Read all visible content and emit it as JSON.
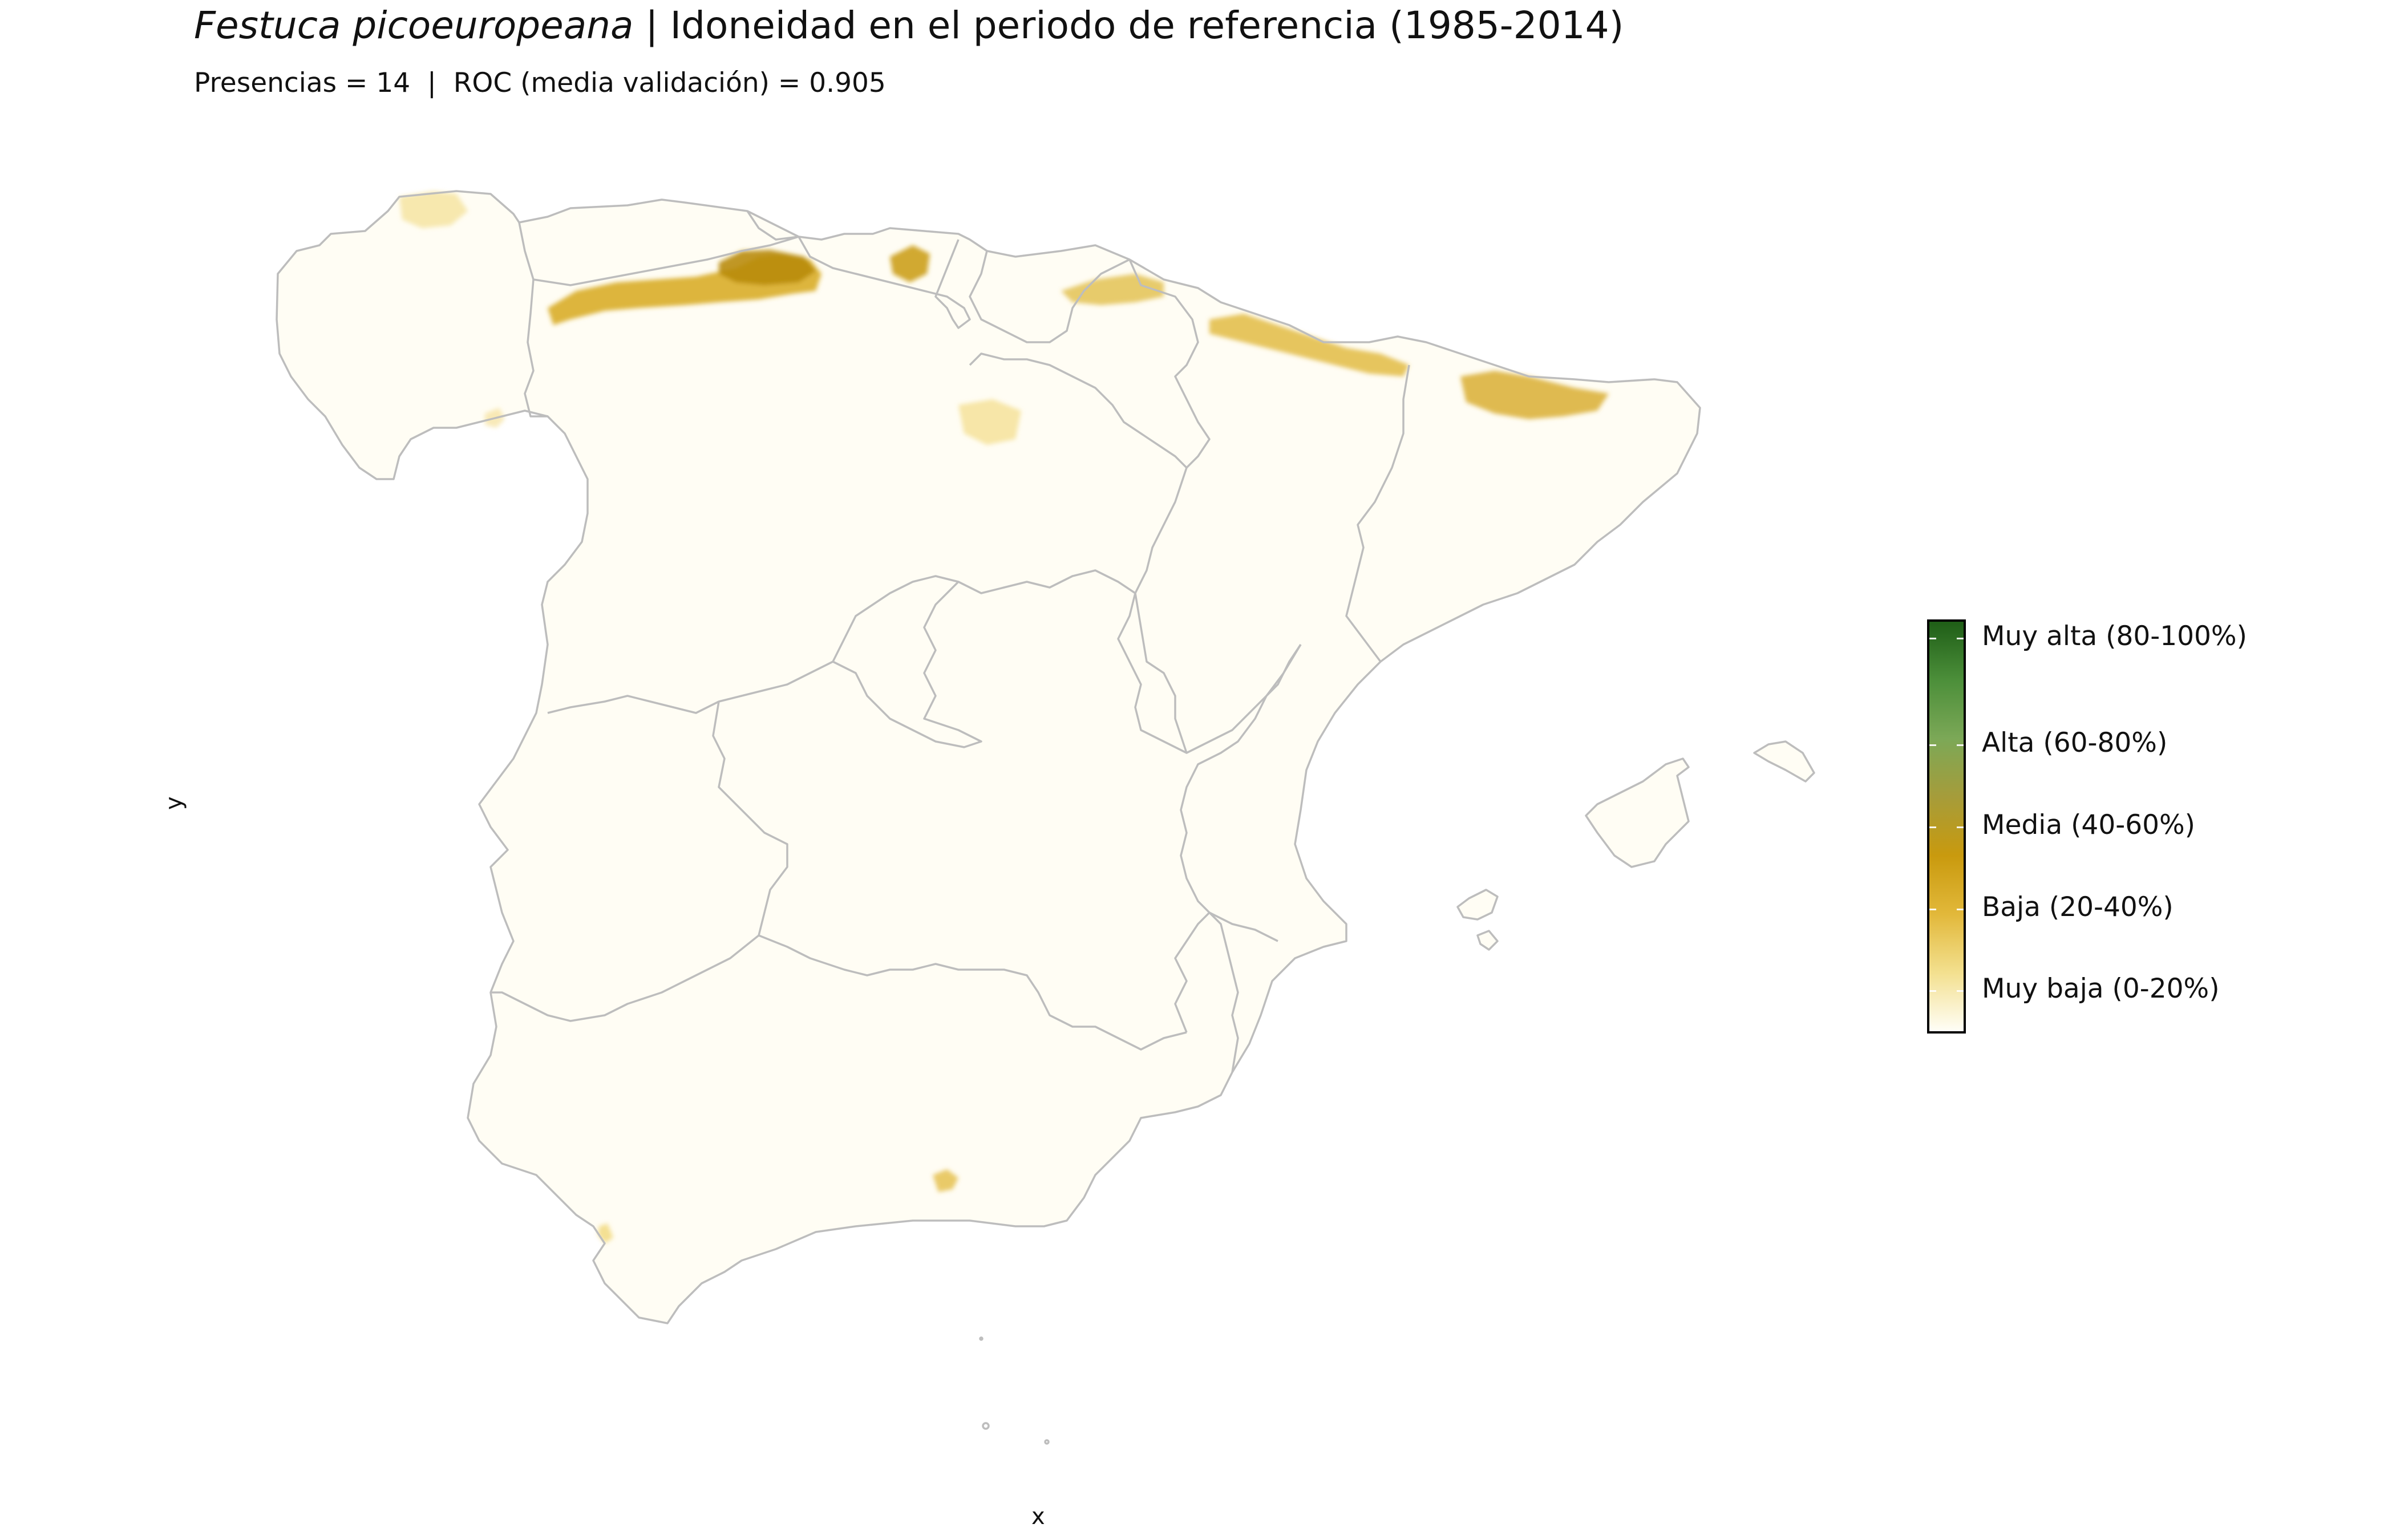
{
  "title": {
    "species": "Festuca picoeuropeana",
    "rest": " | Idoneidad en el periodo de referencia (1985-2014)"
  },
  "subtitle": "Presencias = 14  |  ROC (media validación) = 0.905",
  "axes": {
    "xlabel": "x",
    "ylabel": "y"
  },
  "legend": {
    "levels": [
      {
        "label": "Muy alta (80-100%)",
        "value": 0.9
      },
      {
        "label": "Alta (60-80%)",
        "value": 0.7
      },
      {
        "label": "Media (40-60%)",
        "value": 0.5
      },
      {
        "label": "Baja (20-40%)",
        "value": 0.3
      },
      {
        "label": "Muy baja (0-20%)",
        "value": 0.1
      }
    ],
    "gradient": [
      "#fffef7",
      "#f3e08f",
      "#e2b83a",
      "#c99a0e",
      "#a69c3a",
      "#7ca857",
      "#4c8f3a",
      "#1f5e17"
    ]
  },
  "colors": {
    "boundary": "#bdbdbd",
    "hotspot_high": "#c99a0e",
    "hotspot_low": "#f0d36a"
  }
}
